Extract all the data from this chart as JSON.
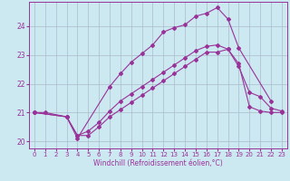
{
  "bg_color": "#cce8f0",
  "grid_color": "#aabbcc",
  "line_color": "#993399",
  "xlabel": "Windchill (Refroidissement éolien,°C)",
  "xlim": [
    -0.5,
    23.5
  ],
  "ylim": [
    19.75,
    24.85
  ],
  "yticks": [
    20,
    21,
    22,
    23,
    24
  ],
  "xticks": [
    0,
    1,
    2,
    3,
    4,
    5,
    6,
    7,
    8,
    9,
    10,
    11,
    12,
    13,
    14,
    15,
    16,
    17,
    18,
    19,
    20,
    21,
    22,
    23
  ],
  "c1_x": [
    0,
    1,
    3,
    4,
    5,
    6,
    7,
    8,
    9,
    10,
    11,
    12,
    13,
    14,
    15,
    16,
    17,
    18,
    19,
    20,
    21,
    22,
    23
  ],
  "c1_y": [
    21.0,
    21.0,
    20.85,
    20.2,
    20.2,
    20.5,
    20.85,
    21.1,
    21.35,
    21.6,
    21.85,
    22.1,
    22.35,
    22.6,
    22.85,
    23.1,
    23.1,
    23.2,
    22.7,
    21.2,
    21.05,
    21.0,
    21.0
  ],
  "c2_x": [
    0,
    3,
    4,
    5,
    6,
    7,
    8,
    9,
    10,
    11,
    12,
    13,
    14,
    15,
    16,
    17,
    18,
    19,
    20,
    21,
    22,
    23
  ],
  "c2_y": [
    21.0,
    20.85,
    20.2,
    20.35,
    20.65,
    21.05,
    21.4,
    21.65,
    21.9,
    22.15,
    22.4,
    22.65,
    22.9,
    23.15,
    23.3,
    23.35,
    23.2,
    22.6,
    21.7,
    21.55,
    21.15,
    21.05
  ],
  "c3_x": [
    0,
    3,
    4,
    7,
    8,
    9,
    10,
    11,
    12,
    13,
    14,
    15,
    16,
    17,
    18,
    19,
    22
  ],
  "c3_y": [
    21.0,
    20.85,
    20.1,
    21.9,
    22.35,
    22.75,
    23.05,
    23.35,
    23.8,
    23.95,
    24.05,
    24.35,
    24.45,
    24.65,
    24.25,
    23.25,
    21.4
  ],
  "marker": "D",
  "ms": 2.0,
  "lw": 0.8
}
